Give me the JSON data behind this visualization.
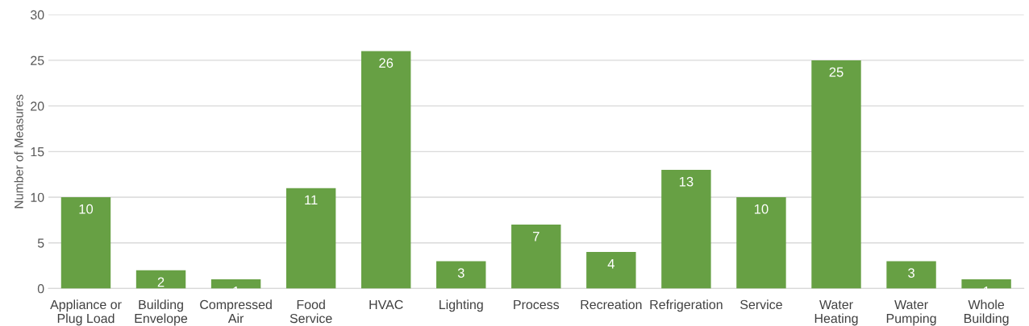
{
  "chart_data": {
    "type": "bar",
    "ylabel": "Number of Measures",
    "categories": [
      "Appliance or\nPlug Load",
      "Building\nEnvelope",
      "Compressed\nAir",
      "Food\nService",
      "HVAC",
      "Lighting",
      "Process",
      "Recreation",
      "Refrigeration",
      "Service",
      "Water\nHeating",
      "Water\nPumping",
      "Whole\nBuilding"
    ],
    "values": [
      10,
      2,
      1,
      11,
      26,
      3,
      7,
      4,
      13,
      10,
      25,
      3,
      1
    ],
    "color": "#67a044",
    "ylim": [
      0,
      30
    ],
    "yticks": [
      0,
      5,
      10,
      15,
      20,
      25,
      30
    ],
    "grid": "y",
    "data_labels": true
  }
}
